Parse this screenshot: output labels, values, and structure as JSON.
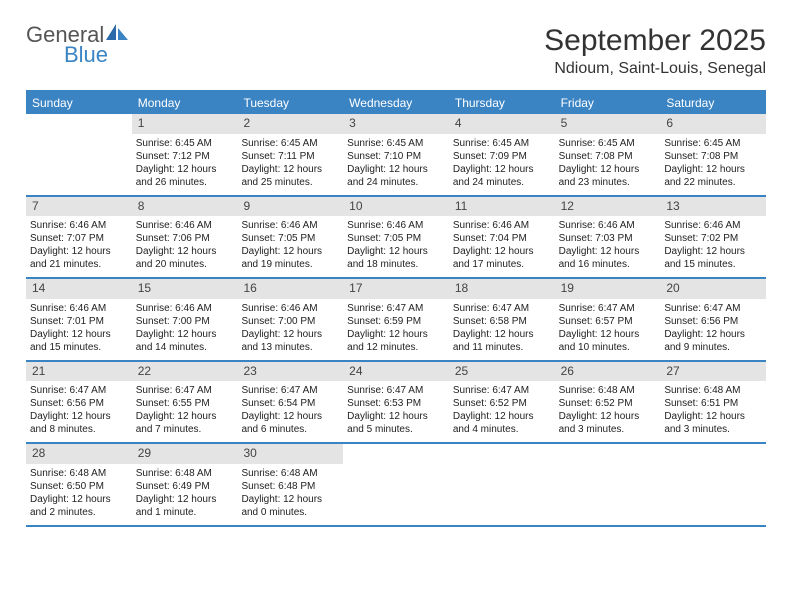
{
  "logo": {
    "text1": "General",
    "text2": "Blue"
  },
  "title": "September 2025",
  "location": "Ndioum, Saint-Louis, Senegal",
  "day_headers": [
    "Sunday",
    "Monday",
    "Tuesday",
    "Wednesday",
    "Thursday",
    "Friday",
    "Saturday"
  ],
  "colors": {
    "accent": "#3b84c4",
    "header_bg": "#3b84c4",
    "header_text": "#ffffff",
    "daynum_bg": "#e4e4e4",
    "body_text": "#222222"
  },
  "fonts": {
    "title_size_pt": 30,
    "location_size_pt": 16,
    "dayheader_size_pt": 12,
    "daynum_size_pt": 12,
    "body_size_pt": 10
  },
  "weeks": [
    [
      {
        "num": "",
        "sunrise": "",
        "sunset": "",
        "daylight1": "",
        "daylight2": ""
      },
      {
        "num": "1",
        "sunrise": "Sunrise: 6:45 AM",
        "sunset": "Sunset: 7:12 PM",
        "daylight1": "Daylight: 12 hours",
        "daylight2": "and 26 minutes."
      },
      {
        "num": "2",
        "sunrise": "Sunrise: 6:45 AM",
        "sunset": "Sunset: 7:11 PM",
        "daylight1": "Daylight: 12 hours",
        "daylight2": "and 25 minutes."
      },
      {
        "num": "3",
        "sunrise": "Sunrise: 6:45 AM",
        "sunset": "Sunset: 7:10 PM",
        "daylight1": "Daylight: 12 hours",
        "daylight2": "and 24 minutes."
      },
      {
        "num": "4",
        "sunrise": "Sunrise: 6:45 AM",
        "sunset": "Sunset: 7:09 PM",
        "daylight1": "Daylight: 12 hours",
        "daylight2": "and 24 minutes."
      },
      {
        "num": "5",
        "sunrise": "Sunrise: 6:45 AM",
        "sunset": "Sunset: 7:08 PM",
        "daylight1": "Daylight: 12 hours",
        "daylight2": "and 23 minutes."
      },
      {
        "num": "6",
        "sunrise": "Sunrise: 6:45 AM",
        "sunset": "Sunset: 7:08 PM",
        "daylight1": "Daylight: 12 hours",
        "daylight2": "and 22 minutes."
      }
    ],
    [
      {
        "num": "7",
        "sunrise": "Sunrise: 6:46 AM",
        "sunset": "Sunset: 7:07 PM",
        "daylight1": "Daylight: 12 hours",
        "daylight2": "and 21 minutes."
      },
      {
        "num": "8",
        "sunrise": "Sunrise: 6:46 AM",
        "sunset": "Sunset: 7:06 PM",
        "daylight1": "Daylight: 12 hours",
        "daylight2": "and 20 minutes."
      },
      {
        "num": "9",
        "sunrise": "Sunrise: 6:46 AM",
        "sunset": "Sunset: 7:05 PM",
        "daylight1": "Daylight: 12 hours",
        "daylight2": "and 19 minutes."
      },
      {
        "num": "10",
        "sunrise": "Sunrise: 6:46 AM",
        "sunset": "Sunset: 7:05 PM",
        "daylight1": "Daylight: 12 hours",
        "daylight2": "and 18 minutes."
      },
      {
        "num": "11",
        "sunrise": "Sunrise: 6:46 AM",
        "sunset": "Sunset: 7:04 PM",
        "daylight1": "Daylight: 12 hours",
        "daylight2": "and 17 minutes."
      },
      {
        "num": "12",
        "sunrise": "Sunrise: 6:46 AM",
        "sunset": "Sunset: 7:03 PM",
        "daylight1": "Daylight: 12 hours",
        "daylight2": "and 16 minutes."
      },
      {
        "num": "13",
        "sunrise": "Sunrise: 6:46 AM",
        "sunset": "Sunset: 7:02 PM",
        "daylight1": "Daylight: 12 hours",
        "daylight2": "and 15 minutes."
      }
    ],
    [
      {
        "num": "14",
        "sunrise": "Sunrise: 6:46 AM",
        "sunset": "Sunset: 7:01 PM",
        "daylight1": "Daylight: 12 hours",
        "daylight2": "and 15 minutes."
      },
      {
        "num": "15",
        "sunrise": "Sunrise: 6:46 AM",
        "sunset": "Sunset: 7:00 PM",
        "daylight1": "Daylight: 12 hours",
        "daylight2": "and 14 minutes."
      },
      {
        "num": "16",
        "sunrise": "Sunrise: 6:46 AM",
        "sunset": "Sunset: 7:00 PM",
        "daylight1": "Daylight: 12 hours",
        "daylight2": "and 13 minutes."
      },
      {
        "num": "17",
        "sunrise": "Sunrise: 6:47 AM",
        "sunset": "Sunset: 6:59 PM",
        "daylight1": "Daylight: 12 hours",
        "daylight2": "and 12 minutes."
      },
      {
        "num": "18",
        "sunrise": "Sunrise: 6:47 AM",
        "sunset": "Sunset: 6:58 PM",
        "daylight1": "Daylight: 12 hours",
        "daylight2": "and 11 minutes."
      },
      {
        "num": "19",
        "sunrise": "Sunrise: 6:47 AM",
        "sunset": "Sunset: 6:57 PM",
        "daylight1": "Daylight: 12 hours",
        "daylight2": "and 10 minutes."
      },
      {
        "num": "20",
        "sunrise": "Sunrise: 6:47 AM",
        "sunset": "Sunset: 6:56 PM",
        "daylight1": "Daylight: 12 hours",
        "daylight2": "and 9 minutes."
      }
    ],
    [
      {
        "num": "21",
        "sunrise": "Sunrise: 6:47 AM",
        "sunset": "Sunset: 6:56 PM",
        "daylight1": "Daylight: 12 hours",
        "daylight2": "and 8 minutes."
      },
      {
        "num": "22",
        "sunrise": "Sunrise: 6:47 AM",
        "sunset": "Sunset: 6:55 PM",
        "daylight1": "Daylight: 12 hours",
        "daylight2": "and 7 minutes."
      },
      {
        "num": "23",
        "sunrise": "Sunrise: 6:47 AM",
        "sunset": "Sunset: 6:54 PM",
        "daylight1": "Daylight: 12 hours",
        "daylight2": "and 6 minutes."
      },
      {
        "num": "24",
        "sunrise": "Sunrise: 6:47 AM",
        "sunset": "Sunset: 6:53 PM",
        "daylight1": "Daylight: 12 hours",
        "daylight2": "and 5 minutes."
      },
      {
        "num": "25",
        "sunrise": "Sunrise: 6:47 AM",
        "sunset": "Sunset: 6:52 PM",
        "daylight1": "Daylight: 12 hours",
        "daylight2": "and 4 minutes."
      },
      {
        "num": "26",
        "sunrise": "Sunrise: 6:48 AM",
        "sunset": "Sunset: 6:52 PM",
        "daylight1": "Daylight: 12 hours",
        "daylight2": "and 3 minutes."
      },
      {
        "num": "27",
        "sunrise": "Sunrise: 6:48 AM",
        "sunset": "Sunset: 6:51 PM",
        "daylight1": "Daylight: 12 hours",
        "daylight2": "and 3 minutes."
      }
    ],
    [
      {
        "num": "28",
        "sunrise": "Sunrise: 6:48 AM",
        "sunset": "Sunset: 6:50 PM",
        "daylight1": "Daylight: 12 hours",
        "daylight2": "and 2 minutes."
      },
      {
        "num": "29",
        "sunrise": "Sunrise: 6:48 AM",
        "sunset": "Sunset: 6:49 PM",
        "daylight1": "Daylight: 12 hours",
        "daylight2": "and 1 minute."
      },
      {
        "num": "30",
        "sunrise": "Sunrise: 6:48 AM",
        "sunset": "Sunset: 6:48 PM",
        "daylight1": "Daylight: 12 hours",
        "daylight2": "and 0 minutes."
      },
      {
        "num": "",
        "sunrise": "",
        "sunset": "",
        "daylight1": "",
        "daylight2": ""
      },
      {
        "num": "",
        "sunrise": "",
        "sunset": "",
        "daylight1": "",
        "daylight2": ""
      },
      {
        "num": "",
        "sunrise": "",
        "sunset": "",
        "daylight1": "",
        "daylight2": ""
      },
      {
        "num": "",
        "sunrise": "",
        "sunset": "",
        "daylight1": "",
        "daylight2": ""
      }
    ]
  ]
}
